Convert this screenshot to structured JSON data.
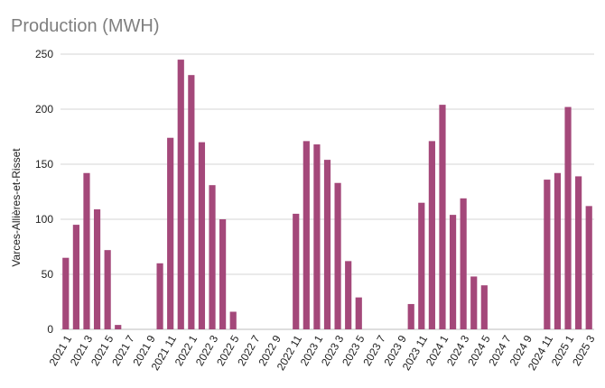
{
  "chart_data": {
    "type": "bar",
    "title": "Production (MWH)",
    "ylabel": "Varces-Allières-et-Risset",
    "xlabel": "",
    "ylim": [
      0,
      250
    ],
    "yticks": [
      0,
      50,
      100,
      150,
      200,
      250
    ],
    "grid": true,
    "bar_color": "#a4487a",
    "categories": [
      "2021 1",
      "2021 2",
      "2021 3",
      "2021 4",
      "2021 5",
      "2021 6",
      "2021 7",
      "2021 8",
      "2021 9",
      "2021 10",
      "2021 11",
      "2021 12",
      "2022 1",
      "2022 2",
      "2022 3",
      "2022 4",
      "2022 5",
      "2022 6",
      "2022 7",
      "2022 8",
      "2022 9",
      "2022 10",
      "2022 11",
      "2022 12",
      "2023 1",
      "2023 2",
      "2023 3",
      "2023 4",
      "2023 5",
      "2023 6",
      "2023 7",
      "2023 8",
      "2023 9",
      "2023 10",
      "2023 11",
      "2023 12",
      "2024 1",
      "2024 2",
      "2024 3",
      "2024 4",
      "2024 5",
      "2024 6",
      "2024 7",
      "2024 8",
      "2024 9",
      "2024 10",
      "2024 11",
      "2024 12",
      "2025 1",
      "2025 2",
      "2025 3"
    ],
    "tick_labels": [
      "2021 1",
      "2021 3",
      "2021 5",
      "2021 7",
      "2021 9",
      "2021 11",
      "2022 1",
      "2022 3",
      "2022 5",
      "2022 7",
      "2022 9",
      "2022 11",
      "2023 1",
      "2023 3",
      "2023 5",
      "2023 7",
      "2023 9",
      "2023 11",
      "2024 1",
      "2024 3",
      "2024 5",
      "2024 7",
      "2024 9",
      "2024 11",
      "2025 1",
      "2025 3"
    ],
    "values": [
      65,
      95,
      142,
      109,
      72,
      4,
      0,
      0,
      0,
      60,
      174,
      245,
      231,
      170,
      131,
      100,
      16,
      0,
      0,
      0,
      0,
      0,
      105,
      171,
      168,
      154,
      133,
      62,
      29,
      0,
      0,
      0,
      0,
      23,
      115,
      171,
      204,
      104,
      119,
      48,
      40,
      0,
      0,
      0,
      0,
      0,
      136,
      142,
      202,
      139,
      112
    ]
  }
}
